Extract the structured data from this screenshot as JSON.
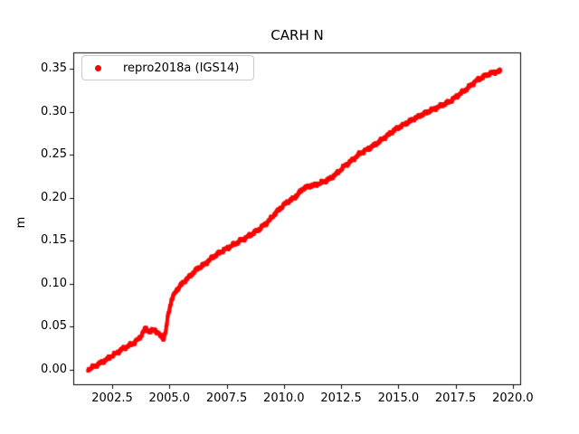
{
  "figure": {
    "background": "#ffffff",
    "text_color": "#000000",
    "spine_color": "#000000"
  },
  "legend": {
    "label": "repro2018a (IGS14)",
    "marker_color": "#ff0000",
    "border_color": "#cccccc",
    "position": "upper left"
  },
  "axes": {
    "xtick_labels": [
      "2002.5",
      "2005.0",
      "2007.5",
      "2010.0",
      "2012.5",
      "2015.0",
      "2017.5",
      "2020.0"
    ],
    "ytick_labels": [
      "0.00",
      "0.05",
      "0.10",
      "0.15",
      "0.20",
      "0.25",
      "0.30",
      "0.35"
    ]
  },
  "chart_data": {
    "type": "scatter",
    "title": "CARH N",
    "xlabel": "",
    "ylabel": "m",
    "xlim": [
      2000.8,
      2020.36
    ],
    "ylim": [
      -0.018,
      0.369
    ],
    "xticks": [
      2002.5,
      2005.0,
      2007.5,
      2010.0,
      2012.5,
      2015.0,
      2017.5,
      2020.0
    ],
    "yticks": [
      0.0,
      0.05,
      0.1,
      0.15,
      0.2,
      0.25,
      0.3,
      0.35
    ],
    "grid": false,
    "legend_position": "upper left",
    "series": [
      {
        "name": "repro2018a (IGS14)",
        "color": "#ff0000",
        "marker": "dot",
        "marker_radius_px": 2.2,
        "points_per_year": 100,
        "noise_amplitude_m": 0.0028,
        "anchors": [
          [
            2001.45,
            0.0
          ],
          [
            2001.8,
            0.005
          ],
          [
            2002.2,
            0.011
          ],
          [
            2002.6,
            0.018
          ],
          [
            2003.0,
            0.025
          ],
          [
            2003.4,
            0.03
          ],
          [
            2003.7,
            0.037
          ],
          [
            2003.95,
            0.048
          ],
          [
            2004.15,
            0.044
          ],
          [
            2004.35,
            0.047
          ],
          [
            2004.55,
            0.041
          ],
          [
            2004.75,
            0.036
          ],
          [
            2004.85,
            0.046
          ],
          [
            2004.95,
            0.065
          ],
          [
            2005.1,
            0.082
          ],
          [
            2005.3,
            0.092
          ],
          [
            2005.55,
            0.1
          ],
          [
            2005.9,
            0.109
          ],
          [
            2006.2,
            0.117
          ],
          [
            2006.5,
            0.122
          ],
          [
            2006.9,
            0.131
          ],
          [
            2007.3,
            0.138
          ],
          [
            2007.7,
            0.144
          ],
          [
            2008.1,
            0.15
          ],
          [
            2008.5,
            0.156
          ],
          [
            2008.9,
            0.163
          ],
          [
            2009.3,
            0.172
          ],
          [
            2009.7,
            0.184
          ],
          [
            2010.05,
            0.193
          ],
          [
            2010.5,
            0.201
          ],
          [
            2010.85,
            0.211
          ],
          [
            2011.2,
            0.214
          ],
          [
            2011.6,
            0.217
          ],
          [
            2012.0,
            0.222
          ],
          [
            2012.3,
            0.228
          ],
          [
            2012.65,
            0.237
          ],
          [
            2013.0,
            0.244
          ],
          [
            2013.35,
            0.252
          ],
          [
            2013.7,
            0.257
          ],
          [
            2014.1,
            0.264
          ],
          [
            2014.5,
            0.272
          ],
          [
            2014.9,
            0.28
          ],
          [
            2015.3,
            0.286
          ],
          [
            2015.7,
            0.292
          ],
          [
            2016.05,
            0.297
          ],
          [
            2016.45,
            0.302
          ],
          [
            2016.85,
            0.307
          ],
          [
            2017.25,
            0.312
          ],
          [
            2017.65,
            0.32
          ],
          [
            2018.0,
            0.327
          ],
          [
            2018.4,
            0.336
          ],
          [
            2018.8,
            0.342
          ],
          [
            2019.15,
            0.346
          ],
          [
            2019.45,
            0.347
          ]
        ]
      }
    ]
  }
}
